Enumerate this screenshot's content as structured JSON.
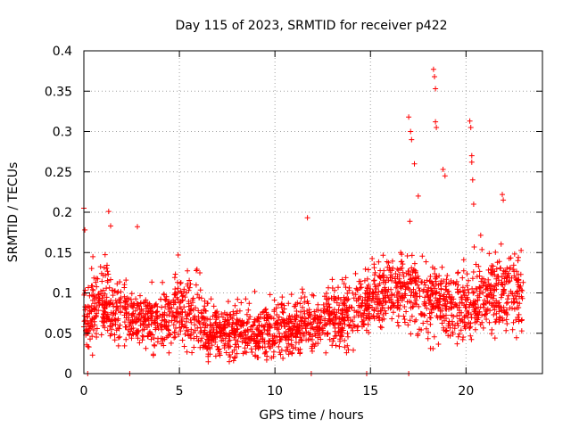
{
  "chart_data": {
    "type": "scatter",
    "title": "Day 115 of 2023, SRMTID for receiver p422",
    "xlabel": "GPS time / hours",
    "ylabel": "SRMTID / TECUs",
    "xlim": [
      0,
      24
    ],
    "ylim": [
      0,
      0.4
    ],
    "x_ticks": [
      0,
      5,
      10,
      15,
      20
    ],
    "x_tick_labels": [
      "0",
      "5",
      "10",
      "15",
      "20"
    ],
    "y_ticks": [
      0,
      0.05,
      0.1,
      0.15,
      0.2,
      0.25,
      0.3,
      0.35,
      0.4
    ],
    "y_tick_labels": [
      "0",
      "0.05",
      "0.1",
      "0.15",
      "0.2",
      "0.25",
      "0.3",
      "0.35",
      "0.4"
    ],
    "grid": true,
    "marker": "+",
    "series_color": "#ff0000",
    "x_range_observed": [
      0.0,
      23.0
    ],
    "baseline_profile": [
      {
        "t": 0,
        "center": 0.07,
        "spread": 0.035
      },
      {
        "t": 1,
        "center": 0.085,
        "spread": 0.04
      },
      {
        "t": 2,
        "center": 0.07,
        "spread": 0.035
      },
      {
        "t": 4,
        "center": 0.065,
        "spread": 0.035
      },
      {
        "t": 5,
        "center": 0.08,
        "spread": 0.04
      },
      {
        "t": 6.5,
        "center": 0.055,
        "spread": 0.03
      },
      {
        "t": 8,
        "center": 0.05,
        "spread": 0.028
      },
      {
        "t": 10,
        "center": 0.055,
        "spread": 0.03
      },
      {
        "t": 12,
        "center": 0.06,
        "spread": 0.032
      },
      {
        "t": 13.5,
        "center": 0.07,
        "spread": 0.035
      },
      {
        "t": 15,
        "center": 0.09,
        "spread": 0.035
      },
      {
        "t": 16,
        "center": 0.105,
        "spread": 0.035
      },
      {
        "t": 17,
        "center": 0.1,
        "spread": 0.045
      },
      {
        "t": 18,
        "center": 0.09,
        "spread": 0.045
      },
      {
        "t": 19.5,
        "center": 0.085,
        "spread": 0.04
      },
      {
        "t": 21,
        "center": 0.095,
        "spread": 0.045
      },
      {
        "t": 23,
        "center": 0.1,
        "spread": 0.045
      }
    ],
    "notable_points": [
      {
        "x": 0.0,
        "y": 0.205
      },
      {
        "x": 0.05,
        "y": 0.178
      },
      {
        "x": 1.3,
        "y": 0.201
      },
      {
        "x": 1.4,
        "y": 0.183
      },
      {
        "x": 2.8,
        "y": 0.182
      },
      {
        "x": 11.7,
        "y": 0.193
      },
      {
        "x": 17.0,
        "y": 0.318
      },
      {
        "x": 17.1,
        "y": 0.3
      },
      {
        "x": 17.15,
        "y": 0.29
      },
      {
        "x": 17.3,
        "y": 0.26
      },
      {
        "x": 17.5,
        "y": 0.22
      },
      {
        "x": 18.3,
        "y": 0.377
      },
      {
        "x": 18.35,
        "y": 0.368
      },
      {
        "x": 18.4,
        "y": 0.353
      },
      {
        "x": 18.4,
        "y": 0.312
      },
      {
        "x": 18.45,
        "y": 0.305
      },
      {
        "x": 18.8,
        "y": 0.253
      },
      {
        "x": 18.9,
        "y": 0.245
      },
      {
        "x": 20.2,
        "y": 0.313
      },
      {
        "x": 20.25,
        "y": 0.305
      },
      {
        "x": 20.3,
        "y": 0.27
      },
      {
        "x": 20.3,
        "y": 0.262
      },
      {
        "x": 20.35,
        "y": 0.24
      },
      {
        "x": 20.4,
        "y": 0.21
      },
      {
        "x": 21.9,
        "y": 0.222
      },
      {
        "x": 21.95,
        "y": 0.215
      },
      {
        "x": 0.2,
        "y": 0.0
      },
      {
        "x": 2.4,
        "y": 0.0
      },
      {
        "x": 11.9,
        "y": 0.0
      },
      {
        "x": 14.8,
        "y": 0.0
      },
      {
        "x": 17.0,
        "y": 0.0
      }
    ]
  }
}
